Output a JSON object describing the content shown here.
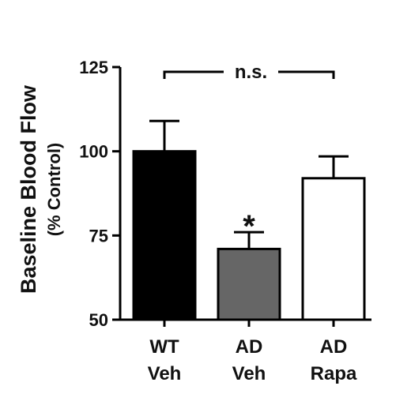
{
  "chart_data": {
    "type": "bar",
    "categories": [
      {
        "line1": "WT",
        "line2": "Veh"
      },
      {
        "line1": "AD",
        "line2": "Veh"
      },
      {
        "line1": "AD",
        "line2": "Rapa"
      }
    ],
    "values": [
      100,
      71,
      92
    ],
    "error_upper": [
      109,
      76,
      98.5
    ],
    "bar_colors": [
      "#000000",
      "#666666",
      "#ffffff"
    ],
    "ylabel": "Baseline Blood Flow",
    "ylabel_sub": "(% Control)",
    "ylim": [
      50,
      125
    ],
    "yticks": [
      50,
      75,
      100,
      125
    ],
    "annotations": {
      "significance_star": {
        "text": "*",
        "category_index": 1
      },
      "bracket": {
        "text": "n.s.",
        "from_index": 0,
        "to_index": 2
      }
    },
    "grid": false,
    "legend": "none"
  }
}
